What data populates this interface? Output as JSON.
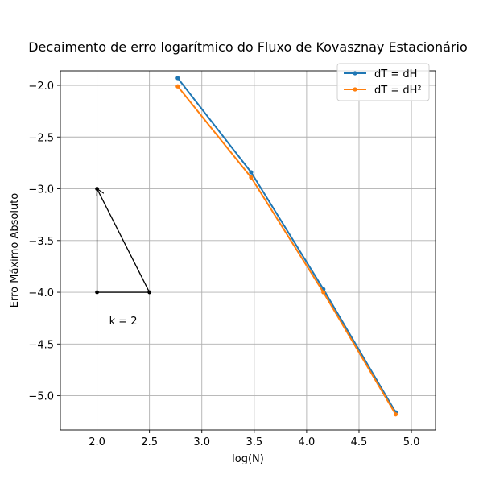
{
  "chart_data": {
    "type": "line",
    "title": "Decaimento de erro logarítmico do Fluxo de Kovasznay Estacionário",
    "xlabel": "log(N)",
    "ylabel": "Erro Máximo Absoluto",
    "xlim": [
      1.65,
      5.23
    ],
    "ylim": [
      -5.33,
      -1.86
    ],
    "x_ticks": [
      2.0,
      2.5,
      3.0,
      3.5,
      4.0,
      4.5,
      5.0
    ],
    "x_tick_labels": [
      "2.0",
      "2.5",
      "3.0",
      "3.5",
      "4.0",
      "4.5",
      "5.0"
    ],
    "y_ticks": [
      -2.0,
      -2.5,
      -3.0,
      -3.5,
      -4.0,
      -4.5,
      -5.0
    ],
    "y_tick_labels": [
      "−2.0",
      "−2.5",
      "−3.0",
      "−3.5",
      "−4.0",
      "−4.5",
      "−5.0"
    ],
    "grid": true,
    "legend_position": "top-right",
    "series": [
      {
        "name": "dT = dH",
        "color": "#1f77b4",
        "x": [
          2.77,
          3.47,
          4.16,
          4.85
        ],
        "y": [
          -1.93,
          -2.84,
          -3.97,
          -5.16
        ]
      },
      {
        "name": "dT = dH²",
        "color": "#ff7f0e",
        "x": [
          2.77,
          3.47,
          4.16,
          4.85
        ],
        "y": [
          -2.01,
          -2.89,
          -4.0,
          -5.18
        ]
      }
    ],
    "slope_triangle": {
      "color": "#000000",
      "points": [
        [
          2.0,
          -4.0
        ],
        [
          2.5,
          -4.0
        ],
        [
          2.0,
          -3.0
        ]
      ],
      "arrow_from": [
        2.5,
        -4.0
      ],
      "arrow_to": [
        2.0,
        -3.0
      ],
      "label": "k = 2",
      "label_at": [
        2.25,
        -4.31
      ]
    }
  }
}
